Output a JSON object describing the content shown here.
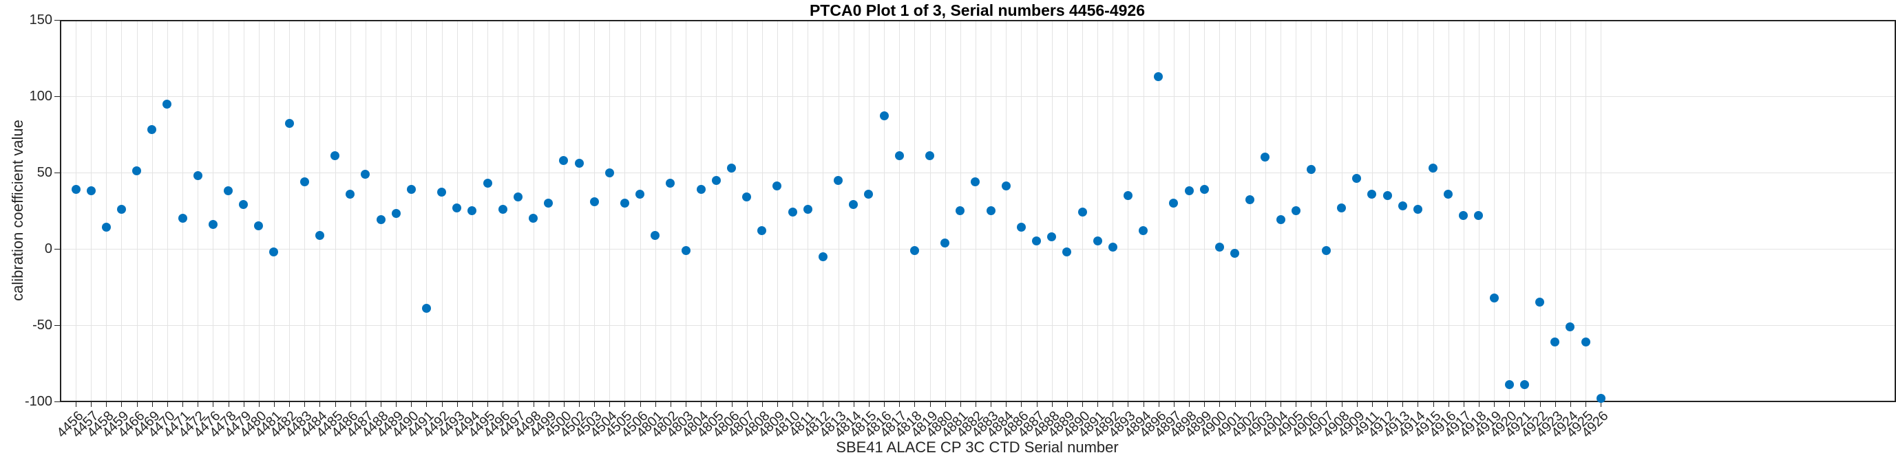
{
  "title": "PTCA0 Plot 1 of 3, Serial numbers 4456-4926",
  "colors": {
    "marker": "#0072BD",
    "grid": "#e3e3e3",
    "axis": "#222222",
    "tick_text": "#262626",
    "title_text": "#000000"
  },
  "chart_data": {
    "type": "scatter",
    "title": "PTCA0 Plot 1 of 3, Serial numbers 4456-4926",
    "xlabel": "SBE41 ALACE CP 3C CTD Serial number",
    "ylabel": "calibration coefficient value",
    "ylim": [
      -100,
      150
    ],
    "yticks": [
      150,
      100,
      50,
      0,
      -50,
      -100
    ],
    "grid": true,
    "legend": "none",
    "marker": "filled-circle",
    "marker_color": "#0072BD",
    "categories": [
      "4456",
      "4457",
      "4458",
      "4459",
      "4466",
      "4469",
      "4470",
      "4471",
      "4472",
      "4476",
      "4478",
      "4479",
      "4480",
      "4481",
      "4482",
      "4483",
      "4484",
      "4485",
      "4486",
      "4487",
      "4488",
      "4489",
      "4490",
      "4491",
      "4492",
      "4493",
      "4494",
      "4495",
      "4496",
      "4497",
      "4498",
      "4499",
      "4500",
      "4502",
      "4503",
      "4504",
      "4505",
      "4506",
      "4801",
      "4802",
      "4803",
      "4804",
      "4805",
      "4806",
      "4807",
      "4808",
      "4809",
      "4810",
      "4811",
      "4812",
      "4813",
      "4814",
      "4815",
      "4816",
      "4817",
      "4818",
      "4819",
      "4880",
      "4881",
      "4882",
      "4883",
      "4884",
      "4886",
      "4887",
      "4888",
      "4889",
      "4890",
      "4891",
      "4892",
      "4893",
      "4894",
      "4896",
      "4897",
      "4898",
      "4899",
      "4900",
      "4901",
      "4902",
      "4903",
      "4904",
      "4905",
      "4906",
      "4907",
      "4908",
      "4909",
      "4911",
      "4912",
      "4913",
      "4914",
      "4915",
      "4916",
      "4917",
      "4918",
      "4919",
      "4920",
      "4921",
      "4922",
      "4923",
      "4924",
      "4925",
      "4926"
    ],
    "values": [
      39,
      38,
      14,
      26,
      51,
      78,
      95,
      20,
      48,
      16,
      38,
      29,
      15,
      -2,
      82,
      44,
      9,
      61,
      36,
      49,
      19,
      23,
      39,
      -39,
      37,
      27,
      25,
      43,
      26,
      34,
      20,
      30,
      58,
      56,
      31,
      50,
      30,
      36,
      9,
      43,
      -1,
      39,
      45,
      53,
      34,
      12,
      41,
      24,
      26,
      -5,
      45,
      29,
      36,
      87,
      61,
      -1,
      61,
      4,
      25,
      44,
      25,
      41,
      14,
      5,
      8,
      -2,
      24,
      5,
      1,
      35,
      12,
      113,
      30,
      38,
      39,
      1,
      -3,
      32,
      60,
      19,
      25,
      52,
      -1,
      27,
      46,
      36,
      35,
      28,
      26,
      53,
      36,
      22,
      22,
      -32,
      -89,
      -89,
      -35,
      -61,
      -51,
      -61,
      -98
    ]
  }
}
